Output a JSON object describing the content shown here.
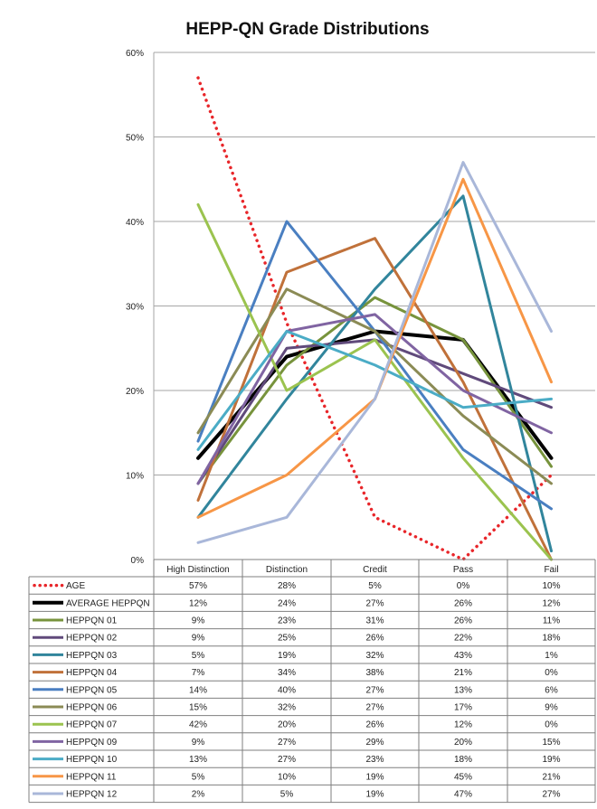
{
  "chart_data": {
    "type": "line",
    "title": "HEPP-QN Grade Distributions",
    "categories": [
      "High Distinction",
      "Distinction",
      "Credit",
      "Pass",
      "Fail"
    ],
    "y_ticks": [
      "0%",
      "10%",
      "20%",
      "30%",
      "40%",
      "50%",
      "60%"
    ],
    "ylim": [
      0,
      60
    ],
    "grid": true,
    "legend": "data table below chart",
    "series": [
      {
        "name": "AGE",
        "color": "#e8262a",
        "style": "dotted",
        "values": [
          57,
          28,
          5,
          0,
          10
        ],
        "labels": [
          "57%",
          "28%",
          "5%",
          "0%",
          "10%"
        ]
      },
      {
        "name": "AVERAGE HEPPQN",
        "color": "#000000",
        "style": "thick",
        "values": [
          12,
          24,
          27,
          26,
          12
        ],
        "labels": [
          "12%",
          "24%",
          "27%",
          "26%",
          "12%"
        ]
      },
      {
        "name": "HEPPQN 01",
        "color": "#77933c",
        "style": "solid",
        "values": [
          9,
          23,
          31,
          26,
          11
        ],
        "labels": [
          "9%",
          "23%",
          "31%",
          "26%",
          "11%"
        ]
      },
      {
        "name": "HEPPQN 02",
        "color": "#604a7b",
        "style": "solid",
        "values": [
          9,
          25,
          26,
          22,
          18
        ],
        "labels": [
          "9%",
          "25%",
          "26%",
          "22%",
          "18%"
        ]
      },
      {
        "name": "HEPPQN 03",
        "color": "#31859c",
        "style": "solid",
        "values": [
          5,
          19,
          32,
          43,
          1
        ],
        "labels": [
          "5%",
          "19%",
          "32%",
          "43%",
          "1%"
        ]
      },
      {
        "name": "HEPPQN 04",
        "color": "#c0713a",
        "style": "solid",
        "values": [
          7,
          34,
          38,
          21,
          0
        ],
        "labels": [
          "7%",
          "34%",
          "38%",
          "21%",
          "0%"
        ]
      },
      {
        "name": "HEPPQN 05",
        "color": "#4a7fc1",
        "style": "solid",
        "values": [
          14,
          40,
          27,
          13,
          6
        ],
        "labels": [
          "14%",
          "40%",
          "27%",
          "13%",
          "6%"
        ]
      },
      {
        "name": "HEPPQN 06",
        "color": "#8b8b55",
        "style": "solid",
        "values": [
          15,
          32,
          27,
          17,
          9
        ],
        "labels": [
          "15%",
          "32%",
          "27%",
          "17%",
          "9%"
        ]
      },
      {
        "name": "HEPPQN 07",
        "color": "#9bc34f",
        "style": "solid",
        "values": [
          42,
          20,
          26,
          12,
          0
        ],
        "labels": [
          "42%",
          "20%",
          "26%",
          "12%",
          "0%"
        ]
      },
      {
        "name": "HEPPQN 09",
        "color": "#8064a2",
        "style": "solid",
        "values": [
          9,
          27,
          29,
          20,
          15
        ],
        "labels": [
          "9%",
          "27%",
          "29%",
          "20%",
          "15%"
        ]
      },
      {
        "name": "HEPPQN 10",
        "color": "#4bacc6",
        "style": "solid",
        "values": [
          13,
          27,
          23,
          18,
          19
        ],
        "labels": [
          "13%",
          "27%",
          "23%",
          "18%",
          "19%"
        ]
      },
      {
        "name": "HEPPQN 11",
        "color": "#f79646",
        "style": "solid",
        "values": [
          5,
          10,
          19,
          45,
          21
        ],
        "labels": [
          "5%",
          "10%",
          "19%",
          "45%",
          "21%"
        ]
      },
      {
        "name": "HEPPQN 12",
        "color": "#a9b7d9",
        "style": "solid",
        "values": [
          2,
          5,
          19,
          47,
          27
        ],
        "labels": [
          "2%",
          "5%",
          "19%",
          "47%",
          "27%"
        ]
      }
    ]
  }
}
